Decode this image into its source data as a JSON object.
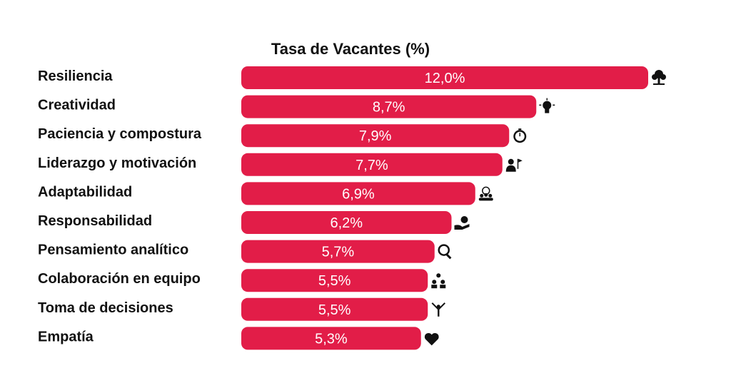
{
  "chart_data": {
    "type": "bar",
    "orientation": "horizontal",
    "title": "Tasa de Vacantes (%)",
    "xlabel": "",
    "ylabel": "",
    "categories": [
      "Resiliencia",
      "Creatividad",
      "Paciencia y compostura",
      "Liderazgo y motivación",
      "Adaptabilidad",
      "Responsabilidad",
      "Pensamiento analítico",
      "Colaboración en equipo",
      "Toma de decisiones",
      "Empatía"
    ],
    "values": [
      12.0,
      8.7,
      7.9,
      7.7,
      6.9,
      6.2,
      5.7,
      5.5,
      5.5,
      5.3
    ],
    "value_labels": [
      "12,0%",
      "8,7%",
      "7,9%",
      "7,7%",
      "6,9%",
      "6,2%",
      "5,7%",
      "5,5%",
      "5,5%",
      "5,3%"
    ],
    "icons": [
      "tree-icon",
      "lightbulb-icon",
      "stopwatch-icon",
      "leader-flag-icon",
      "team-target-icon",
      "hand-check-icon",
      "magnifier-icon",
      "team-network-icon",
      "branching-person-icon",
      "heart-icon"
    ],
    "bar_color": "#e21d48",
    "label_color": "#ffffff",
    "grid": false,
    "legend": "none"
  }
}
